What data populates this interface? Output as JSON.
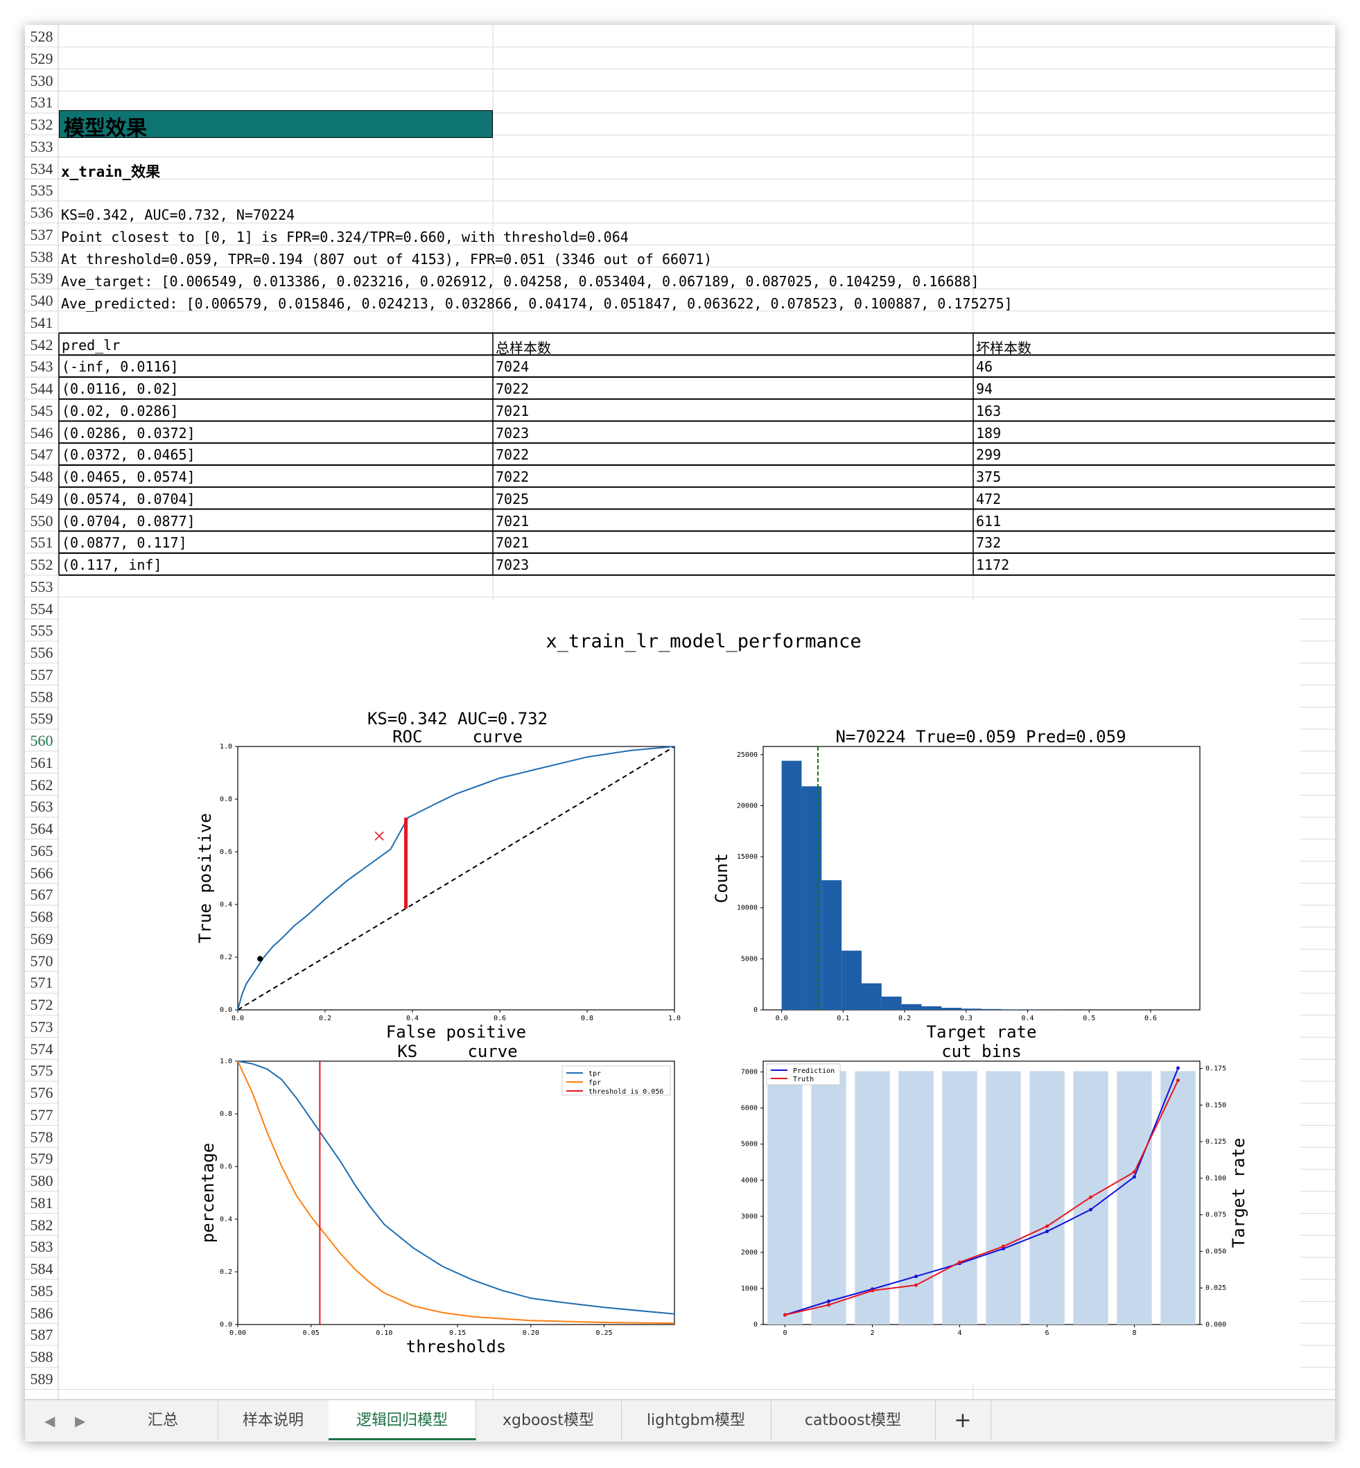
{
  "rows": {
    "numbers": [
      "528",
      "529",
      "530",
      "531",
      "532",
      "533",
      "534",
      "535",
      "536",
      "537",
      "538",
      "539",
      "540",
      "541",
      "542",
      "543",
      "544",
      "545",
      "546",
      "547",
      "548",
      "549",
      "550",
      "551",
      "552",
      "553",
      "554",
      "555",
      "556",
      "557",
      "558",
      "559",
      "560",
      "561",
      "562",
      "563",
      "564",
      "565",
      "566",
      "567",
      "568",
      "569",
      "570",
      "571",
      "572",
      "573",
      "574",
      "575",
      "576",
      "577",
      "578",
      "579",
      "580",
      "581",
      "582",
      "583",
      "584",
      "585",
      "586",
      "587",
      "588",
      "589"
    ],
    "active": "560"
  },
  "colors": {
    "header_fill": "#0e7471",
    "accent_green": "#1e7145",
    "blue": "#1f5ea8",
    "orange": "#ff7f0e",
    "red": "#e8141e"
  },
  "content": {
    "section_title": "模型效果",
    "subtitle": "x_train_效果",
    "line1": "KS=0.342, AUC=0.732, N=70224",
    "line2": "Point closest to [0, 1] is FPR=0.324/TPR=0.660, with threshold=0.064",
    "line3": "At threshold=0.059, TPR=0.194 (807 out of 4153), FPR=0.051 (3346 out of 66071)",
    "line4": "Ave_target: [0.006549, 0.013386, 0.023216, 0.026912, 0.04258, 0.053404, 0.067189, 0.087025, 0.104259, 0.16688]",
    "line5": "Ave_predicted: [0.006579, 0.015846, 0.024213, 0.032866, 0.04174, 0.051847, 0.063622, 0.078523, 0.100887, 0.175275]"
  },
  "table": {
    "headers": [
      "pred_lr",
      "总样本数",
      "坏样本数"
    ],
    "rows": [
      [
        "(-inf, 0.0116]",
        "7024",
        "46"
      ],
      [
        "(0.0116, 0.02]",
        "7022",
        "94"
      ],
      [
        "(0.02, 0.0286]",
        "7021",
        "163"
      ],
      [
        "(0.0286, 0.0372]",
        "7023",
        "189"
      ],
      [
        "(0.0372, 0.0465]",
        "7022",
        "299"
      ],
      [
        "(0.0465, 0.0574]",
        "7022",
        "375"
      ],
      [
        "(0.0574, 0.0704]",
        "7025",
        "472"
      ],
      [
        "(0.0704, 0.0877]",
        "7021",
        "611"
      ],
      [
        "(0.0877, 0.117]",
        "7021",
        "732"
      ],
      [
        "(0.117, inf]",
        "7023",
        "1172"
      ]
    ]
  },
  "figure": {
    "suptitle": "x_train_lr_model_performance",
    "roc": {
      "title1": "KS=0.342 AUC=0.732",
      "title2": "ROC     curve",
      "xlabel": "False positive",
      "ylabel": "True positive"
    },
    "hist": {
      "title": "N=70224 True=0.059 Pred=0.059",
      "xlabel": "Target rate",
      "ylabel": "Count"
    },
    "ks": {
      "title": "KS     curve",
      "xlabel": "thresholds",
      "ylabel": "percentage",
      "legend": [
        "tpr",
        "fpr",
        "threshold is 0.056"
      ]
    },
    "bins": {
      "title": "cut bins",
      "ylabel": "Target rate",
      "legend": [
        "Prediction",
        "Truth"
      ]
    }
  },
  "chart_data": [
    {
      "type": "line",
      "title": "KS=0.342 AUC=0.732 ROC curve",
      "xlabel": "False positive",
      "ylabel": "True positive",
      "xlim": [
        0,
        1
      ],
      "ylim": [
        0,
        1
      ],
      "xticks": [
        "0.0",
        "0.2",
        "0.4",
        "0.6",
        "0.8",
        "1.0"
      ],
      "yticks": [
        "0.0",
        "0.2",
        "0.4",
        "0.6",
        "0.8",
        "1.0"
      ],
      "series": [
        {
          "values": [
            [
              0,
              0
            ],
            [
              0.01,
              0.06
            ],
            [
              0.02,
              0.1
            ],
            [
              0.04,
              0.15
            ],
            [
              0.06,
              0.2
            ],
            [
              0.08,
              0.24
            ],
            [
              0.1,
              0.27
            ],
            [
              0.13,
              0.32
            ],
            [
              0.16,
              0.36
            ],
            [
              0.2,
              0.42
            ],
            [
              0.25,
              0.49
            ],
            [
              0.3,
              0.55
            ],
            [
              0.35,
              0.61
            ],
            [
              0.39,
              0.73
            ],
            [
              0.45,
              0.78
            ],
            [
              0.5,
              0.82
            ],
            [
              0.55,
              0.85
            ],
            [
              0.6,
              0.88
            ],
            [
              0.7,
              0.92
            ],
            [
              0.8,
              0.96
            ],
            [
              0.9,
              0.985
            ],
            [
              1,
              1
            ]
          ]
        }
      ],
      "diagonal": [
        [
          0,
          0
        ],
        [
          1,
          1
        ]
      ],
      "ks_line": {
        "x": 0.385,
        "y_from": 0.385,
        "y_to": 0.73
      },
      "closest_point": [
        0.324,
        0.66
      ],
      "threshold_point": [
        0.051,
        0.194
      ]
    },
    {
      "type": "bar",
      "title": "N=70224 True=0.059 Pred=0.059",
      "xlabel": "Target rate",
      "ylabel": "Count",
      "xlim": [
        -0.03,
        0.68
      ],
      "ylim": [
        0,
        25800
      ],
      "xticks": [
        "0.0",
        "0.1",
        "0.2",
        "0.3",
        "0.4",
        "0.5",
        "0.6"
      ],
      "yticks": [
        "0",
        "5000",
        "10000",
        "15000",
        "20000",
        "25000"
      ],
      "bin_width": 0.0325,
      "bin_starts": [
        0,
        0.0325,
        0.065,
        0.0975,
        0.13,
        0.1625,
        0.195,
        0.2275,
        0.26,
        0.2925,
        0.325,
        0.3575,
        0.39,
        0.4225
      ],
      "values": [
        24400,
        21900,
        12700,
        5800,
        2600,
        1300,
        560,
        350,
        200,
        120,
        80,
        40,
        20,
        10
      ],
      "mean_line": 0.059
    },
    {
      "type": "line",
      "title": "KS curve",
      "xlabel": "thresholds",
      "ylabel": "percentage",
      "xlim": [
        0,
        0.298
      ],
      "ylim": [
        0,
        1
      ],
      "xticks": [
        "0.00",
        "0.05",
        "0.10",
        "0.15",
        "0.20",
        "0.25"
      ],
      "yticks": [
        "0.0",
        "0.2",
        "0.4",
        "0.6",
        "0.8",
        "1.0"
      ],
      "series": [
        {
          "name": "tpr",
          "values": [
            [
              0,
              1
            ],
            [
              0.01,
              0.99
            ],
            [
              0.02,
              0.97
            ],
            [
              0.03,
              0.93
            ],
            [
              0.04,
              0.86
            ],
            [
              0.05,
              0.78
            ],
            [
              0.06,
              0.7
            ],
            [
              0.07,
              0.62
            ],
            [
              0.08,
              0.53
            ],
            [
              0.09,
              0.45
            ],
            [
              0.1,
              0.38
            ],
            [
              0.12,
              0.29
            ],
            [
              0.14,
              0.22
            ],
            [
              0.16,
              0.17
            ],
            [
              0.18,
              0.13
            ],
            [
              0.2,
              0.1
            ],
            [
              0.22,
              0.085
            ],
            [
              0.25,
              0.065
            ],
            [
              0.298,
              0.04
            ]
          ]
        },
        {
          "name": "fpr",
          "values": [
            [
              0,
              1
            ],
            [
              0.01,
              0.88
            ],
            [
              0.02,
              0.73
            ],
            [
              0.03,
              0.6
            ],
            [
              0.04,
              0.49
            ],
            [
              0.05,
              0.41
            ],
            [
              0.06,
              0.34
            ],
            [
              0.07,
              0.27
            ],
            [
              0.08,
              0.21
            ],
            [
              0.09,
              0.16
            ],
            [
              0.1,
              0.12
            ],
            [
              0.12,
              0.07
            ],
            [
              0.14,
              0.045
            ],
            [
              0.16,
              0.03
            ],
            [
              0.2,
              0.015
            ],
            [
              0.25,
              0.008
            ],
            [
              0.298,
              0.005
            ]
          ]
        }
      ],
      "threshold": 0.056
    },
    {
      "type": "bar",
      "title": "cut bins",
      "ylabel": "Target rate",
      "xlim": [
        -0.5,
        9.5
      ],
      "ylim": [
        0,
        7300
      ],
      "y2lim": [
        0,
        0.18
      ],
      "xticks": [
        "0",
        "2",
        "4",
        "6",
        "8"
      ],
      "yticks": [
        "0",
        "1000",
        "2000",
        "3000",
        "4000",
        "5000",
        "6000",
        "7000"
      ],
      "y2ticks": [
        "0.000",
        "0.025",
        "0.050",
        "0.075",
        "0.100",
        "0.125",
        "0.150",
        "0.175"
      ],
      "categories": [
        0,
        1,
        2,
        3,
        4,
        5,
        6,
        7,
        8,
        9
      ],
      "values": [
        7024,
        7022,
        7021,
        7023,
        7022,
        7022,
        7025,
        7021,
        7021,
        7023
      ],
      "series": [
        {
          "name": "Prediction",
          "values": [
            0.006579,
            0.015846,
            0.024213,
            0.032866,
            0.04174,
            0.051847,
            0.063622,
            0.078523,
            0.100887,
            0.175275
          ]
        },
        {
          "name": "Truth",
          "values": [
            0.006549,
            0.013386,
            0.023216,
            0.026912,
            0.04258,
            0.053404,
            0.067189,
            0.087025,
            0.104259,
            0.16688
          ]
        }
      ]
    }
  ],
  "tabs": {
    "items": [
      "汇总",
      "样本说明",
      "逻辑回归模型",
      "xgboost模型",
      "lightgbm模型",
      "catboost模型"
    ],
    "active": 2,
    "add": "+",
    "prev": "◀",
    "next": "▶"
  }
}
